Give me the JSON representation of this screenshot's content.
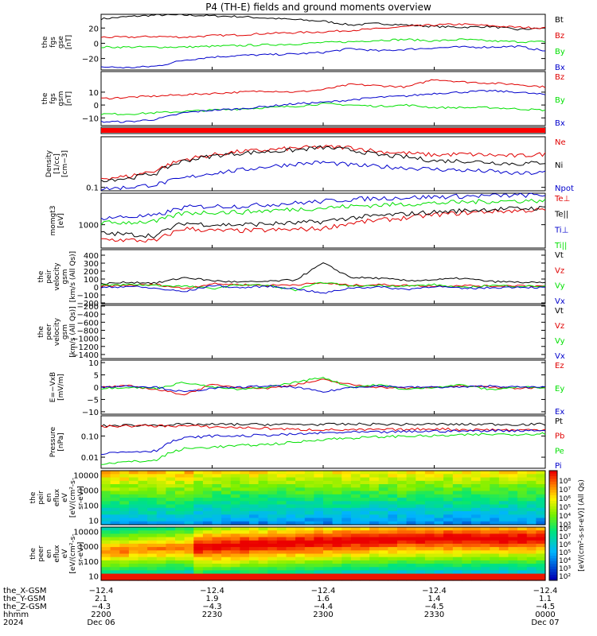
{
  "title": "P4 (TH-E) fields and ground moments overview",
  "colors": {
    "black": "#000000",
    "red": "#e00000",
    "green": "#00e000",
    "blue": "#0000cc"
  },
  "chart_data": [
    {
      "type": "line",
      "panel": "fgs_gse",
      "ylabel": [
        "the",
        "fgs",
        "gse",
        "[nT]"
      ],
      "ylim": [
        -35,
        38
      ],
      "ticks": [
        {
          "v": 20,
          "label": "20"
        },
        {
          "v": 0,
          "label": "0"
        },
        {
          "v": -20,
          "label": "−20"
        }
      ],
      "series": [
        {
          "name": "Bt",
          "color": "black",
          "values": [
            32,
            35,
            37,
            37,
            36,
            35,
            33,
            31,
            29,
            24,
            26,
            24,
            22,
            21,
            22,
            18,
            20
          ]
        },
        {
          "name": "Bz",
          "color": "red",
          "values": [
            8,
            8,
            9,
            8,
            10,
            11,
            13,
            14,
            15,
            17,
            19,
            22,
            24,
            25,
            23,
            21,
            20
          ]
        },
        {
          "name": "By",
          "color": "green",
          "values": [
            -5,
            -5,
            -5,
            -5,
            -4,
            -3,
            -2,
            -1,
            1,
            2,
            4,
            5,
            3,
            5,
            3,
            2,
            2
          ]
        },
        {
          "name": "Bx",
          "color": "blue",
          "values": [
            -31,
            -32,
            -30,
            -22,
            -18,
            -16,
            -15,
            -14,
            -12,
            -7,
            -10,
            -8,
            -6,
            -5,
            -5,
            -4,
            -10
          ]
        }
      ]
    },
    {
      "type": "line",
      "panel": "fgs_gsm",
      "ylabel": [
        "the",
        "fgs",
        "gsm",
        "[nT]"
      ],
      "ylim": [
        -16,
        26
      ],
      "ticks": [
        {
          "v": 10,
          "label": "10"
        },
        {
          "v": 0,
          "label": "0"
        },
        {
          "v": -10,
          "label": "−10"
        }
      ],
      "series": [
        {
          "name": "Bz",
          "color": "red",
          "values": [
            5,
            6,
            7,
            8,
            9,
            10,
            11,
            10,
            12,
            16,
            15,
            14,
            20,
            18,
            17,
            16,
            14
          ]
        },
        {
          "name": "By",
          "color": "green",
          "values": [
            -7,
            -7,
            -6,
            -5,
            -4,
            -3,
            -2,
            -1,
            1,
            0,
            -1,
            0,
            -2,
            -2,
            -2,
            -3,
            -4
          ]
        },
        {
          "name": "Bx",
          "color": "blue",
          "values": [
            -13,
            -13,
            -11,
            -6,
            -4,
            -3,
            -1,
            1,
            2,
            4,
            6,
            7,
            9,
            10,
            11,
            10,
            8
          ]
        }
      ]
    },
    {
      "type": "flag",
      "panel": "flag"
    },
    {
      "type": "line",
      "panel": "density",
      "log": true,
      "ylabel": [
        "Density",
        "[1/cc]",
        "[cm−3]"
      ],
      "ylim": [
        0.08,
        2.6
      ],
      "ticks": [
        {
          "v": 0.1,
          "label": "0.1"
        }
      ],
      "series": [
        {
          "name": "Ne",
          "color": "red",
          "values": [
            0.18,
            0.2,
            0.3,
            0.6,
            0.8,
            1.0,
            1.1,
            1.25,
            1.35,
            1.3,
            1.0,
            0.9,
            0.8,
            0.85,
            0.8,
            0.75,
            0.85
          ]
        },
        {
          "name": "Ni",
          "color": "black",
          "values": [
            0.16,
            0.18,
            0.25,
            0.55,
            0.75,
            0.9,
            1.0,
            1.1,
            1.3,
            1.1,
            0.8,
            0.7,
            0.55,
            0.55,
            0.5,
            0.45,
            0.5
          ]
        },
        {
          "name": "Npot",
          "color": "blue",
          "values": [
            0.09,
            0.1,
            0.12,
            0.18,
            0.25,
            0.3,
            0.38,
            0.45,
            0.5,
            0.42,
            0.38,
            0.35,
            0.32,
            0.3,
            0.28,
            0.24,
            0.26
          ]
        }
      ]
    },
    {
      "type": "line",
      "panel": "temp",
      "log": true,
      "ylabel": [
        "momgt3",
        "[eV]"
      ],
      "ylim": [
        250,
        6500
      ],
      "ticks": [
        {
          "v": 1000,
          "label": "1000"
        }
      ],
      "series": [
        {
          "name": "Te⊥",
          "color": "red",
          "values": [
            420,
            400,
            380,
            800,
            700,
            700,
            720,
            750,
            800,
            1100,
            1300,
            1500,
            1800,
            2000,
            2200,
            2300,
            2400
          ]
        },
        {
          "name": "Te||",
          "color": "black",
          "values": [
            600,
            560,
            520,
            1100,
            1000,
            1000,
            1050,
            1100,
            1200,
            1500,
            1700,
            1900,
            2100,
            2300,
            2500,
            2600,
            2700
          ]
        },
        {
          "name": "Ti⊥",
          "color": "blue",
          "values": [
            1500,
            1600,
            1700,
            2800,
            3000,
            3000,
            3300,
            3600,
            4000,
            4500,
            4800,
            5000,
            5200,
            5400,
            5600,
            5700,
            5800
          ]
        },
        {
          "name": "Ti||",
          "color": "green",
          "values": [
            1100,
            1150,
            1200,
            2000,
            2100,
            2100,
            2300,
            2500,
            2700,
            3000,
            3200,
            3400,
            3600,
            3800,
            4000,
            4100,
            4200
          ]
        }
      ]
    },
    {
      "type": "line",
      "panel": "peir_v",
      "ylabel": [
        "the",
        "peir",
        "velocity",
        "gsm",
        "[km/s (All Qs)]"
      ],
      "ylim": [
        -210,
        470
      ],
      "ticks": [
        {
          "v": 400,
          "label": "400"
        },
        {
          "v": 300,
          "label": "300"
        },
        {
          "v": 200,
          "label": "200"
        },
        {
          "v": 100,
          "label": "100"
        },
        {
          "v": 0,
          "label": "0"
        },
        {
          "v": -100,
          "label": "−100"
        },
        {
          "v": -200,
          "label": "−200"
        }
      ],
      "series": [
        {
          "name": "Vt",
          "color": "black",
          "values": [
            40,
            60,
            50,
            120,
            80,
            60,
            70,
            90,
            300,
            120,
            110,
            80,
            90,
            110,
            70,
            60,
            50
          ]
        },
        {
          "name": "Vz",
          "color": "red",
          "values": [
            10,
            20,
            30,
            -20,
            40,
            30,
            20,
            30,
            50,
            20,
            30,
            20,
            10,
            20,
            10,
            20,
            10
          ]
        },
        {
          "name": "Vy",
          "color": "green",
          "values": [
            20,
            30,
            20,
            10,
            -20,
            30,
            20,
            -40,
            60,
            10,
            20,
            10,
            30,
            -10,
            20,
            10,
            10
          ]
        },
        {
          "name": "Vx",
          "color": "blue",
          "values": [
            -10,
            10,
            -20,
            -60,
            20,
            -10,
            10,
            -20,
            -80,
            -10,
            0,
            -30,
            10,
            -20,
            -10,
            0,
            -10
          ]
        }
      ]
    },
    {
      "type": "line",
      "panel": "peer_v",
      "ylabel": [
        "the",
        "peer",
        "velocity",
        "gsm",
        "[km/s (All Qs)]"
      ],
      "ylim": [
        -1500,
        -180
      ],
      "ticks": [
        {
          "v": -200,
          "label": "−200"
        },
        {
          "v": -400,
          "label": "−400"
        },
        {
          "v": -600,
          "label": "−600"
        },
        {
          "v": -800,
          "label": "−800"
        },
        {
          "v": -1000,
          "label": "−1000"
        },
        {
          "v": -1200,
          "label": "−1200"
        },
        {
          "v": -1400,
          "label": "−1400"
        }
      ],
      "series": [
        {
          "name": "Vt",
          "color": "black",
          "values": []
        },
        {
          "name": "Vz",
          "color": "red",
          "values": []
        },
        {
          "name": "Vy",
          "color": "green",
          "values": []
        },
        {
          "name": "Vx",
          "color": "blue",
          "values": []
        }
      ]
    },
    {
      "type": "line",
      "panel": "efield",
      "ylabel": [
        "E=−VxB",
        "[mV/m]"
      ],
      "ylim": [
        -11,
        11
      ],
      "ticks": [
        {
          "v": 10,
          "label": "10"
        },
        {
          "v": 5,
          "label": "5"
        },
        {
          "v": 0,
          "label": "0"
        },
        {
          "v": -5,
          "label": "−5"
        },
        {
          "v": -10,
          "label": "−10"
        }
      ],
      "series": [
        {
          "name": "Ez",
          "color": "red",
          "values": [
            0,
            0.5,
            -1,
            -3,
            1,
            0,
            -0.5,
            1,
            3,
            1,
            0,
            -0.5,
            0,
            0.5,
            0,
            -0.5,
            0
          ]
        },
        {
          "name": "Ey",
          "color": "green",
          "values": [
            -0.5,
            0,
            -0.5,
            2,
            0,
            -1,
            0,
            2,
            4,
            0,
            1,
            -1,
            0,
            1,
            -1,
            0,
            0
          ]
        },
        {
          "name": "Ex",
          "color": "blue",
          "values": [
            0,
            0.5,
            0,
            -2,
            -0.5,
            0,
            0.5,
            0,
            -2,
            0,
            0.5,
            0,
            0,
            0,
            0.5,
            0,
            0
          ]
        }
      ]
    },
    {
      "type": "line",
      "panel": "pressure",
      "log": true,
      "ylabel": [
        "Pressure",
        "[nPa]"
      ],
      "ylim": [
        0.003,
        0.9
      ],
      "ticks": [
        {
          "v": 0.1,
          "label": "0.10"
        },
        {
          "v": 0.01,
          "label": "0.01"
        }
      ],
      "series": [
        {
          "name": "Pt",
          "color": "black",
          "values": [
            0.3,
            0.32,
            0.33,
            0.35,
            0.35,
            0.35,
            0.35,
            0.35,
            0.35,
            0.36,
            0.36,
            0.35,
            0.36,
            0.35,
            0.36,
            0.35,
            0.36
          ]
        },
        {
          "name": "Pb",
          "color": "red",
          "values": [
            0.28,
            0.3,
            0.3,
            0.3,
            0.27,
            0.25,
            0.23,
            0.2,
            0.2,
            0.19,
            0.2,
            0.2,
            0.22,
            0.2,
            0.2,
            0.19,
            0.2
          ]
        },
        {
          "name": "Pe",
          "color": "green",
          "values": [
            0.005,
            0.006,
            0.007,
            0.025,
            0.03,
            0.035,
            0.04,
            0.05,
            0.07,
            0.08,
            0.09,
            0.1,
            0.1,
            0.11,
            0.12,
            0.12,
            0.13
          ]
        },
        {
          "name": "Pi",
          "color": "blue",
          "values": [
            0.015,
            0.018,
            0.02,
            0.08,
            0.1,
            0.1,
            0.11,
            0.12,
            0.14,
            0.15,
            0.15,
            0.16,
            0.17,
            0.17,
            0.18,
            0.18,
            0.19
          ]
        }
      ]
    },
    {
      "type": "heatmap",
      "panel": "peir_spec",
      "ylabel": [
        "the",
        "peir",
        "en",
        "eflux",
        "eV",
        "[eV/(cm²-s-",
        "sr-eV)]"
      ],
      "ylim": [
        5,
        20000
      ],
      "ticks": [
        {
          "v": 10000,
          "label": "10000"
        },
        {
          "v": 1000,
          "label": "1000"
        },
        {
          "v": 100,
          "label": "100"
        },
        {
          "v": 10,
          "label": "10"
        }
      ]
    },
    {
      "type": "heatmap",
      "panel": "peer_spec",
      "ylabel": [
        "the",
        "peer",
        "en",
        "eflux",
        "eV",
        "[eV/(cm²-s-",
        "sr-eV)]"
      ],
      "ylim": [
        5,
        20000
      ],
      "ticks": [
        {
          "v": 10000,
          "label": "10000"
        },
        {
          "v": 1000,
          "label": "1000"
        },
        {
          "v": 100,
          "label": "100"
        },
        {
          "v": 10,
          "label": "10"
        }
      ]
    }
  ],
  "colorbar": {
    "label": "[eV/(cm²-s-sr-eV)] (All Qs)",
    "ticks": [
      "10⁸",
      "10⁷",
      "10⁶",
      "10⁵",
      "10⁴",
      "10³"
    ],
    "ticks2": [
      "10⁸",
      "10⁷",
      "10⁶",
      "10⁵",
      "10⁴",
      "10³",
      "10²"
    ]
  },
  "footer": {
    "rows": [
      {
        "label": "the_X-GSM",
        "values": [
          "−12.4",
          "−12.4",
          "−12.4",
          "−12.4",
          "−12.4"
        ]
      },
      {
        "label": "the_Y-GSM",
        "values": [
          "2.1",
          "1.9",
          "1.6",
          "1.4",
          "1.1"
        ]
      },
      {
        "label": "the_Z-GSM",
        "values": [
          "−4.3",
          "−4.3",
          "−4.4",
          "−4.5",
          "−4.5"
        ]
      },
      {
        "label": "hhmm",
        "values": [
          "2200",
          "2230",
          "2300",
          "2330",
          "0000"
        ]
      },
      {
        "label": "2024",
        "values": [
          "Dec 06",
          "",
          "",
          "",
          "Dec 07"
        ]
      }
    ]
  }
}
